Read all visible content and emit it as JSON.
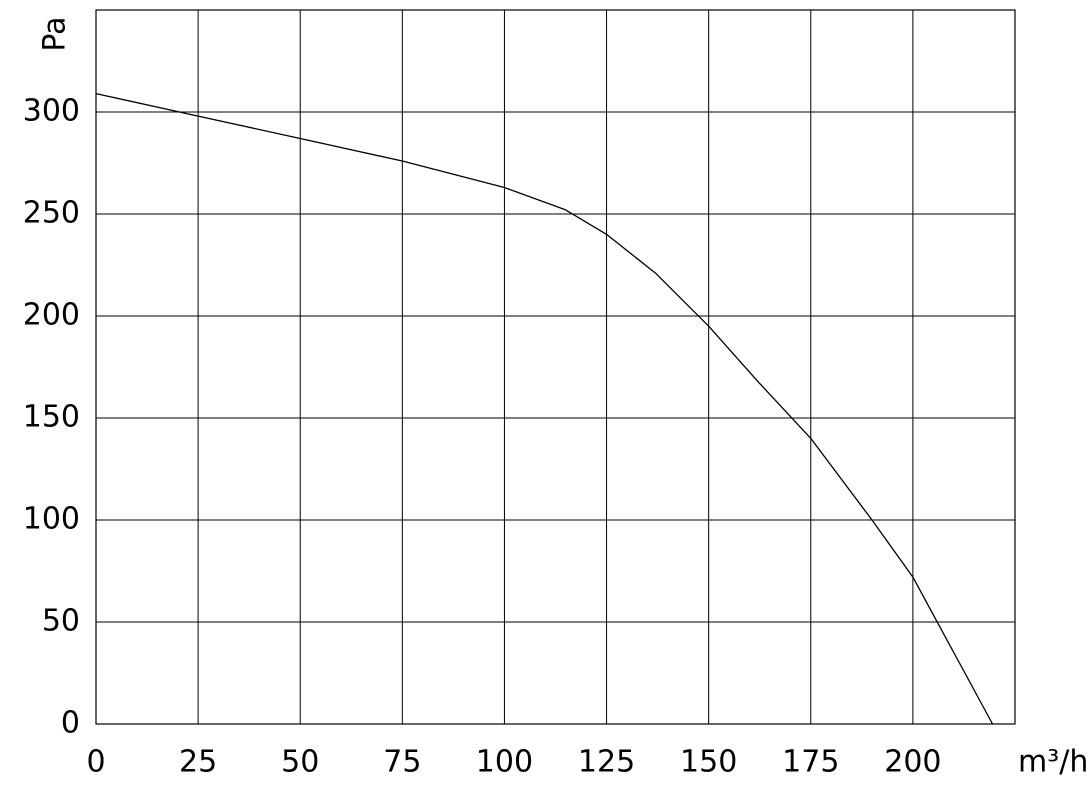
{
  "chart_data": {
    "type": "line",
    "x_label": "m³/h",
    "y_label": "Pa",
    "x": [
      0,
      25,
      50,
      75,
      100,
      115,
      125,
      137,
      150,
      162,
      175,
      190,
      200,
      206.5,
      213,
      219.5
    ],
    "values": [
      309,
      298,
      287,
      276,
      263,
      252,
      240,
      221,
      195,
      168,
      140,
      100,
      72,
      48,
      24,
      0
    ],
    "color": "#000000",
    "xlim": [
      0,
      225
    ],
    "ylim": [
      0,
      350
    ],
    "xticks": [
      0,
      25,
      50,
      75,
      100,
      125,
      150,
      175,
      200
    ],
    "yticks": [
      0,
      50,
      100,
      150,
      200,
      250,
      300
    ],
    "grid": true
  }
}
